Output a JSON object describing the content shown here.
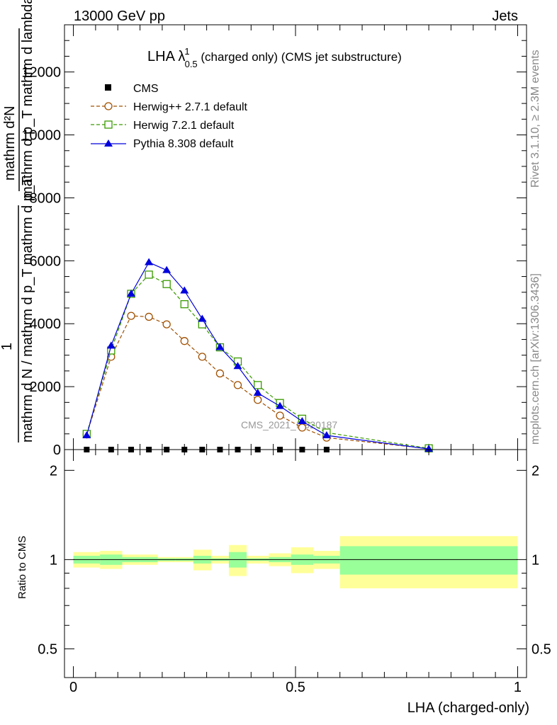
{
  "header": {
    "left": "13000 GeV pp",
    "right": "Jets"
  },
  "side_labels": {
    "rivet": "Rivet 3.1.10, ≥ 2.3M events",
    "mcplots": "mcplots.cern.ch [arXiv:1306.3436]"
  },
  "chart_data": [
    {
      "type": "line",
      "title": {
        "main": "LHA λ",
        "sup": "1",
        "sub": "0.5",
        "rest": " (charged only) (CMS jet substructure)"
      },
      "ylabel": {
        "top_numerator": "mathrm d²N",
        "top_denominator": "mathrm d p_T mathrm d lambda",
        "bottom_numerator": "1",
        "bottom_denominator": "mathrm d N / mathrm d p_T mathrm d p_T"
      },
      "watermark": "CMS_2021_I1920187",
      "ylim": [
        0,
        13500
      ],
      "xlim": [
        -0.02,
        1.02
      ],
      "y_ticks": [
        {
          "v": 0,
          "label": "0"
        },
        {
          "v": 2000,
          "label": "2000"
        },
        {
          "v": 4000,
          "label": "4000"
        },
        {
          "v": 6000,
          "label": "6000"
        },
        {
          "v": 8000,
          "label": "8000"
        },
        {
          "v": 10000,
          "label": "10000"
        },
        {
          "v": 12000,
          "label": "12000"
        }
      ],
      "legend": {
        "position": "top-left",
        "entries": [
          "CMS",
          "Herwig++ 2.7.1 default",
          "Herwig 7.2.1 default",
          "Pythia 8.308 default"
        ]
      },
      "series": [
        {
          "name": "CMS",
          "color": "#000000",
          "marker": "filled-square",
          "x": [
            0.03,
            0.085,
            0.13,
            0.17,
            0.21,
            0.25,
            0.29,
            0.33,
            0.37,
            0.415,
            0.465,
            0.515,
            0.57
          ],
          "y": [
            0,
            0,
            0,
            0,
            0,
            0,
            0,
            0,
            0,
            0,
            0,
            0,
            0
          ]
        },
        {
          "name": "Herwig++ 2.7.1 default",
          "color": "#a05000",
          "marker": "open-circle",
          "dash": "5,3",
          "x": [
            0.03,
            0.085,
            0.13,
            0.17,
            0.21,
            0.25,
            0.29,
            0.33,
            0.37,
            0.415,
            0.465,
            0.515,
            0.57,
            0.8
          ],
          "y": [
            480,
            2950,
            4250,
            4220,
            3980,
            3450,
            2950,
            2420,
            2050,
            1580,
            1080,
            700,
            380,
            30
          ]
        },
        {
          "name": "Herwig 7.2.1 default",
          "color": "#3a9a00",
          "marker": "open-square",
          "dash": "5,3",
          "x": [
            0.03,
            0.085,
            0.13,
            0.17,
            0.21,
            0.25,
            0.29,
            0.33,
            0.37,
            0.415,
            0.465,
            0.515,
            0.57,
            0.8
          ],
          "y": [
            500,
            3150,
            4950,
            5560,
            5260,
            4620,
            3980,
            3250,
            2800,
            2050,
            1480,
            980,
            540,
            40
          ]
        },
        {
          "name": "Pythia 8.308 default",
          "color": "#0000dd",
          "marker": "filled-triangle",
          "x": [
            0.03,
            0.085,
            0.13,
            0.17,
            0.21,
            0.25,
            0.29,
            0.33,
            0.37,
            0.415,
            0.465,
            0.515,
            0.57,
            0.8
          ],
          "y": [
            450,
            3300,
            4950,
            5950,
            5700,
            5050,
            4150,
            3250,
            2650,
            1800,
            1380,
            900,
            450,
            20
          ]
        }
      ]
    },
    {
      "type": "area",
      "ylabel": "Ratio to CMS",
      "xlabel": "LHA (charged-only)",
      "ylim": [
        0.4,
        2.35
      ],
      "log_y": true,
      "xlim": [
        -0.02,
        1.02
      ],
      "reference_line": 1,
      "y_ticks": [
        {
          "v": 0.5,
          "label": "0.5"
        },
        {
          "v": 1,
          "label": "1"
        },
        {
          "v": 2,
          "label": "2"
        }
      ],
      "x_ticks": [
        {
          "v": 0,
          "label": "0"
        },
        {
          "v": 0.5,
          "label": "0.5"
        },
        {
          "v": 1,
          "label": "1"
        }
      ],
      "bands": {
        "inner_color": "#99ff99",
        "outer_color": "#ffff99",
        "bins": [
          {
            "x0": 0.0,
            "x1": 0.06,
            "inner": 0.03,
            "outer": 0.06
          },
          {
            "x0": 0.06,
            "x1": 0.11,
            "inner": 0.04,
            "outer": 0.07
          },
          {
            "x0": 0.11,
            "x1": 0.15,
            "inner": 0.02,
            "outer": 0.04
          },
          {
            "x0": 0.15,
            "x1": 0.19,
            "inner": 0.02,
            "outer": 0.04
          },
          {
            "x0": 0.19,
            "x1": 0.23,
            "inner": 0.01,
            "outer": 0.02
          },
          {
            "x0": 0.23,
            "x1": 0.27,
            "inner": 0.01,
            "outer": 0.02
          },
          {
            "x0": 0.27,
            "x1": 0.31,
            "inner": 0.03,
            "outer": 0.08
          },
          {
            "x0": 0.31,
            "x1": 0.35,
            "inner": 0.01,
            "outer": 0.03
          },
          {
            "x0": 0.35,
            "x1": 0.39,
            "inner": 0.06,
            "outer": 0.12
          },
          {
            "x0": 0.39,
            "x1": 0.44,
            "inner": 0.01,
            "outer": 0.03
          },
          {
            "x0": 0.44,
            "x1": 0.49,
            "inner": 0.02,
            "outer": 0.05
          },
          {
            "x0": 0.49,
            "x1": 0.54,
            "inner": 0.04,
            "outer": 0.1
          },
          {
            "x0": 0.54,
            "x1": 0.6,
            "inner": 0.03,
            "outer": 0.07
          },
          {
            "x0": 0.6,
            "x1": 1.0,
            "inner": 0.11,
            "outer": 0.2
          }
        ]
      }
    }
  ]
}
